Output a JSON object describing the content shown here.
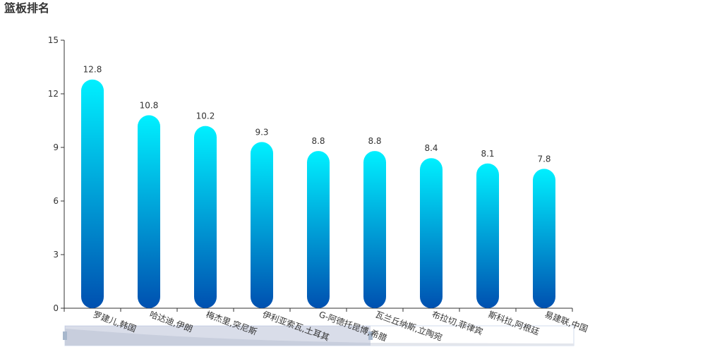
{
  "chart_data": {
    "type": "bar",
    "title": "篮板排名",
    "categories": [
      "罗建儿,韩国",
      "哈达迪,伊朗",
      "梅杰里,突尼斯",
      "伊利亚索瓦,土耳其",
      "G-阿德托昆博,希腊",
      "瓦兰丘纳斯,立陶宛",
      "布拉切,菲律宾",
      "斯科拉,阿根廷",
      "易建联,中国"
    ],
    "values": [
      12.8,
      10.8,
      10.2,
      9.3,
      8.8,
      8.8,
      8.4,
      8.1,
      7.8
    ],
    "color": [
      "#00f0ff",
      "#0050b0"
    ],
    "ylim": [
      0,
      15
    ],
    "yticks": [
      0,
      3,
      6,
      9,
      12,
      15
    ]
  }
}
